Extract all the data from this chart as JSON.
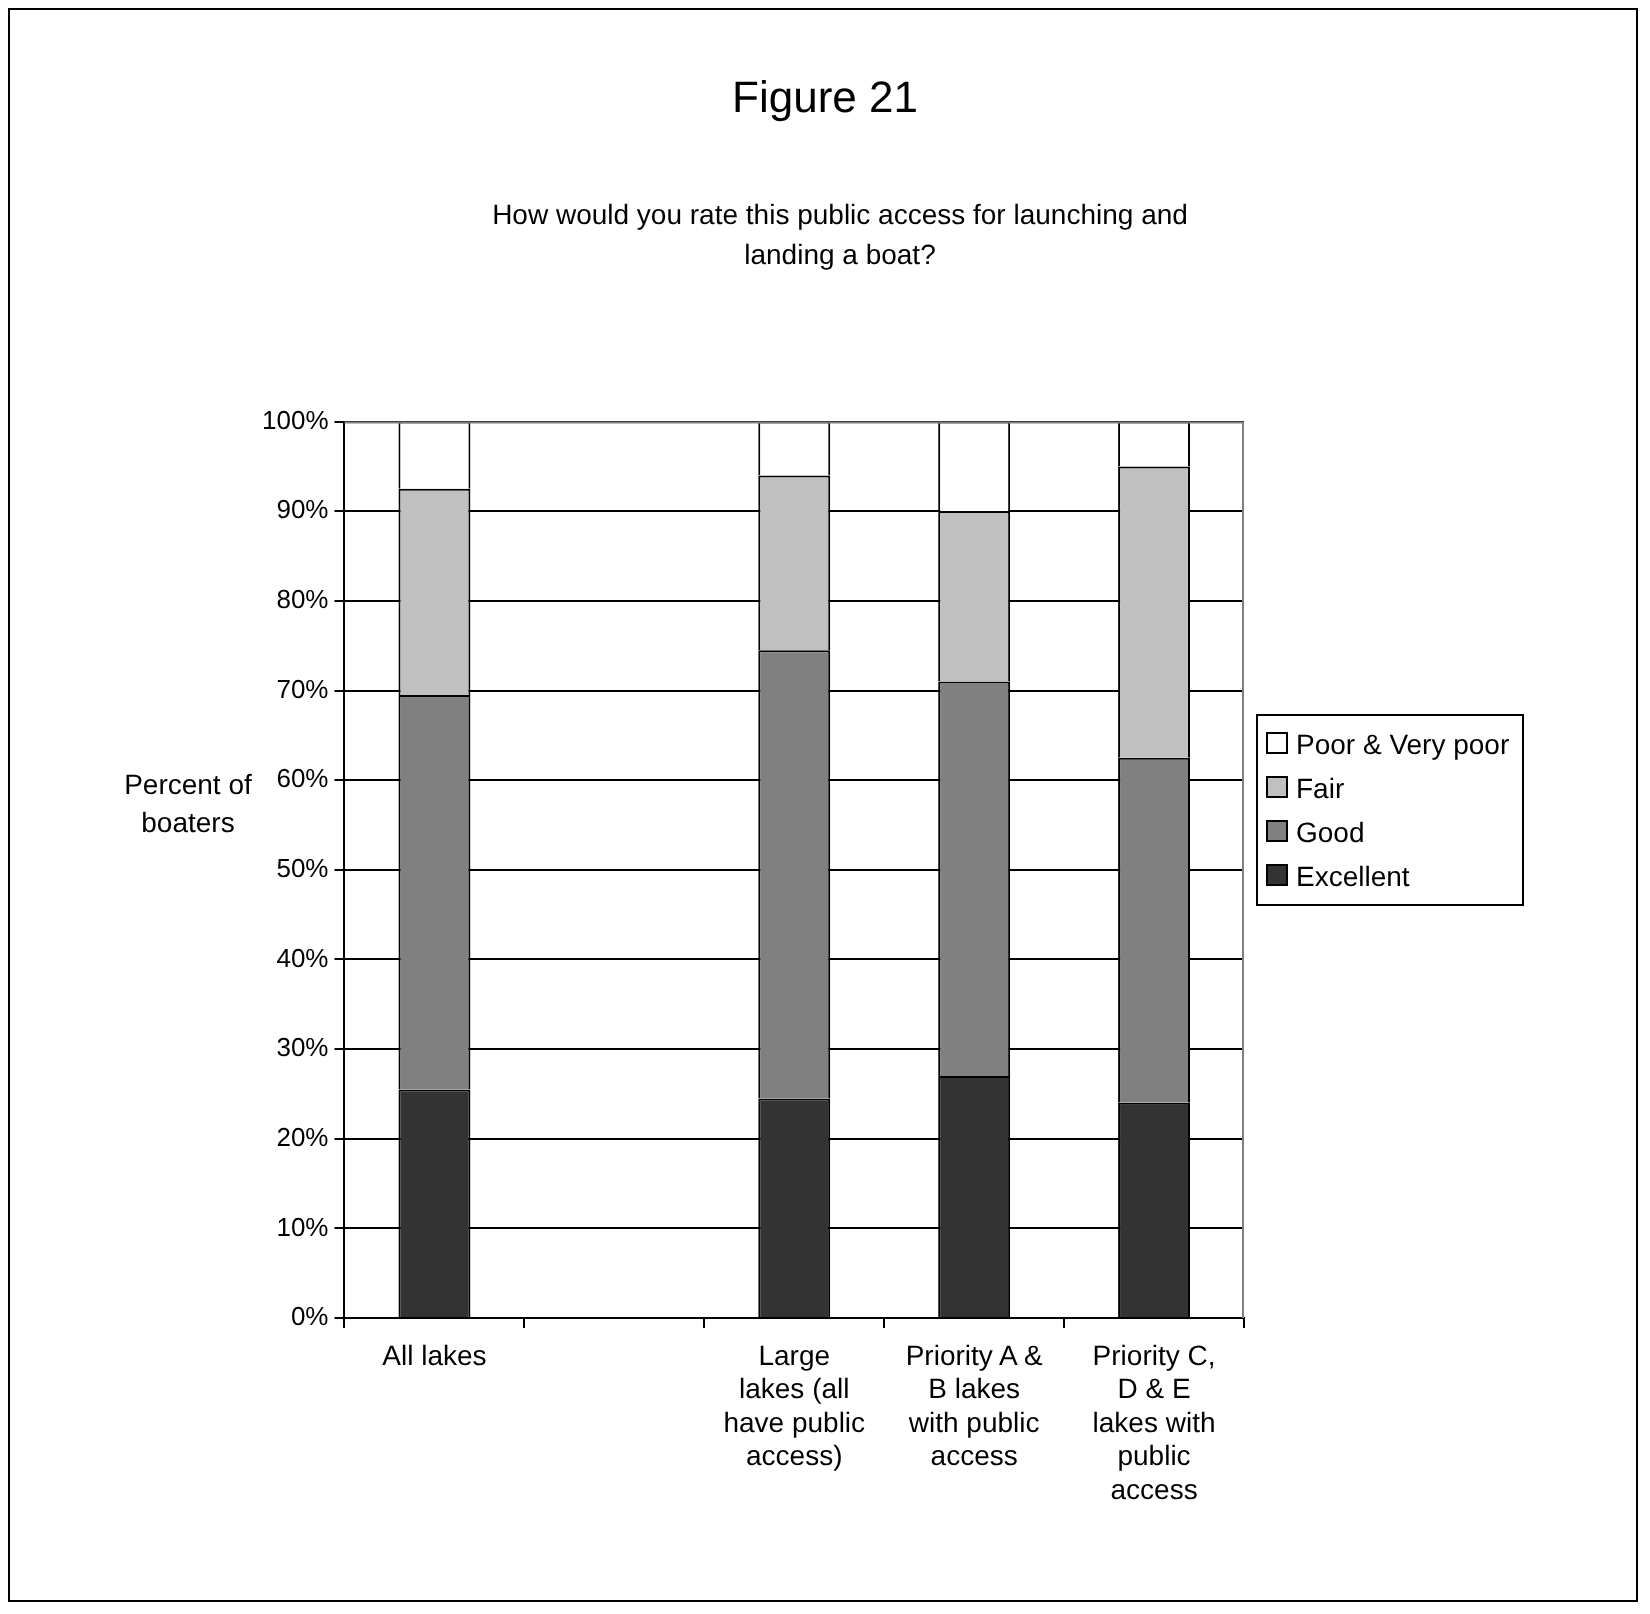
{
  "chart_data": {
    "type": "bar",
    "title": "Figure 21",
    "subtitle": "How would you rate this public access for launching and landing a boat?",
    "ylabel": "Percent of boaters",
    "categories": [
      "All lakes",
      null,
      "Large lakes (all have public access)",
      "Priority A & B lakes with public access",
      "Priority C, D & E lakes with public access"
    ],
    "stacked": true,
    "series": [
      {
        "name": "Excellent",
        "color": "#333333",
        "values": [
          25.5,
          null,
          24.5,
          27,
          24
        ]
      },
      {
        "name": "Good",
        "color": "#808080",
        "values": [
          44,
          null,
          50,
          44,
          38.5
        ]
      },
      {
        "name": "Fair",
        "color": "#c0c0c0",
        "values": [
          23,
          null,
          19.5,
          19,
          32.5
        ]
      },
      {
        "name": "Poor & Very poor",
        "color": "#ffffff",
        "values": [
          7.5,
          null,
          6,
          10,
          5
        ]
      }
    ],
    "ylim": [
      0,
      100
    ],
    "yticks": [
      {
        "value": 0,
        "label": "0%"
      },
      {
        "value": 10,
        "label": "10%"
      },
      {
        "value": 20,
        "label": "20%"
      },
      {
        "value": 30,
        "label": "30%"
      },
      {
        "value": 40,
        "label": "40%"
      },
      {
        "value": 50,
        "label": "50%"
      },
      {
        "value": 60,
        "label": "60%"
      },
      {
        "value": 70,
        "label": "70%"
      },
      {
        "value": 80,
        "label": "80%"
      },
      {
        "value": 90,
        "label": "90%"
      },
      {
        "value": 100,
        "label": "100%"
      }
    ],
    "grid": "y",
    "legend": "right"
  }
}
